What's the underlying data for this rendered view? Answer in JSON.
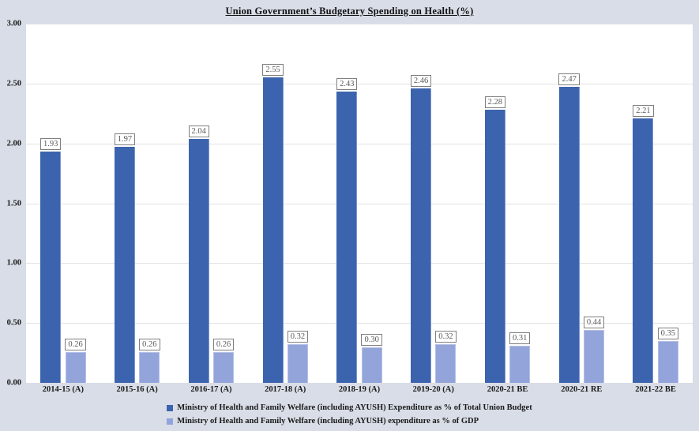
{
  "chart_data": {
    "type": "bar",
    "title": "Union Government’s Budgetary Spending on Health (%)",
    "categories": [
      "2014-15 (A)",
      "2015-16 (A)",
      "2016-17 (A)",
      "2017-18 (A)",
      "2018-19 (A)",
      "2019-20 (A)",
      "2020-21 BE",
      "2020-21 RE",
      "2021-22 BE"
    ],
    "series": [
      {
        "name": "Ministry of Health and Family Welfare (including AYUSH) Expenditure as % of Total Union Budget",
        "color": "#3c63ae",
        "values": [
          1.93,
          1.97,
          2.04,
          2.55,
          2.43,
          2.46,
          2.28,
          2.47,
          2.21
        ]
      },
      {
        "name": "Ministry of Health and Family Welfare (including AYUSH) expenditure as % of GDP",
        "color": "#93a4da",
        "values": [
          0.26,
          0.26,
          0.26,
          0.32,
          0.3,
          0.32,
          0.31,
          0.44,
          0.35
        ]
      }
    ],
    "ylim": [
      0,
      3
    ],
    "yticks": [
      "0.00",
      "0.50",
      "1.00",
      "1.50",
      "2.00",
      "2.50",
      "3.00"
    ],
    "grid": "horizontal",
    "legend_position": "bottom",
    "data_labels": "boxed, two decimals",
    "xlabel": "",
    "ylabel": ""
  },
  "style_colors": {
    "page_background": "#d8dde7",
    "plot_background": "#ffffff",
    "gridline": "#e2e2e2",
    "series1_fill": "#3c63ae",
    "series2_fill": "#93a4da",
    "label_box_border": "#7f7f7f",
    "label_text": "#595959"
  }
}
